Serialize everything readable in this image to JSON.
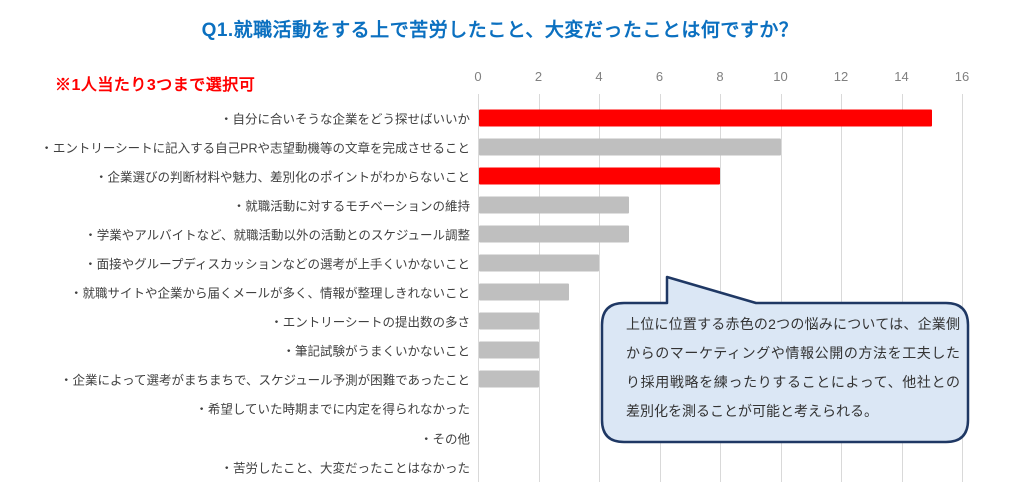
{
  "title": "Q1.就職活動をする上で苦労したこと、大変だったことは何ですか？",
  "note": "※1人当たり3つまで選択可",
  "colors": {
    "title": "#0b70c0",
    "note": "#ff0000",
    "highlight": "#ff0000",
    "default": "#bfbfbf",
    "gridline": "#d9d9d9",
    "callout_fill": "#dbe7f5",
    "callout_border": "#1f3864"
  },
  "chart_data": {
    "type": "bar",
    "orientation": "horizontal",
    "title": "Q1.就職活動をする上で苦労したこと、大変だったことは何ですか？",
    "categories": [
      "・自分に合いそうな企業をどう探せばいいか",
      "・エントリーシートに記入する自己PRや志望動機等の文章を完成させること",
      "・企業選びの判断材料や魅力、差別化のポイントがわからないこと",
      "・就職活動に対するモチベーションの維持",
      "・学業やアルバイトなど、就職活動以外の活動とのスケジュール調整",
      "・面接やグループディスカッションなどの選考が上手くいかないこと",
      "・就職サイトや企業から届くメールが多く、情報が整理しきれないこと",
      "・エントリーシートの提出数の多さ",
      "・筆記試験がうまくいかないこと",
      "・企業によって選考がまちまちで、スケジュール予測が困難であったこと",
      "・希望していた時期までに内定を得られなかった",
      "・その他",
      "・苦労したこと、大変だったことはなかった"
    ],
    "values": [
      15,
      10,
      8,
      5,
      5,
      4,
      3,
      2,
      2,
      2,
      0,
      0,
      0
    ],
    "bar_colors": [
      "highlight",
      "default",
      "highlight",
      "default",
      "default",
      "default",
      "default",
      "default",
      "default",
      "default",
      "default",
      "default",
      "default"
    ],
    "xlabel": "",
    "ylabel": "",
    "xlim": [
      0,
      16
    ],
    "x_ticks": [
      0,
      2,
      4,
      6,
      8,
      10,
      12,
      14,
      16
    ],
    "grid": true,
    "axis_position": "top",
    "legend": null
  },
  "callout": {
    "text": "上位に位置する赤色の2つの悩みについては、企業側からのマーケティングや情報公開の方法を工夫したり採用戦略を練ったりすることによって、他社との差別化を測ることが可能と考えられる。"
  }
}
